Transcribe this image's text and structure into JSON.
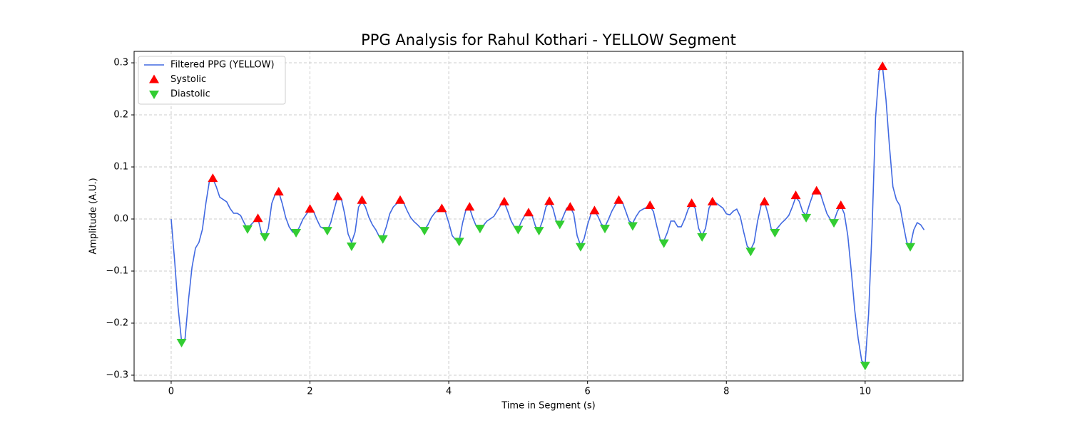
{
  "chart_data": {
    "type": "line",
    "title": "PPG Analysis for Rahul Kothari - YELLOW Segment",
    "xlabel": "Time in Segment (s)",
    "ylabel": "Amplitude (A.U.)",
    "xlim": [
      -0.534,
      11.41
    ],
    "ylim": [
      -0.311,
      0.322
    ],
    "xticks": [
      0,
      2,
      4,
      6,
      8,
      10
    ],
    "yticks": [
      {
        "value": -0.3,
        "label": "−0.3"
      },
      {
        "value": -0.2,
        "label": "−0.2"
      },
      {
        "value": -0.1,
        "label": "−0.1"
      },
      {
        "value": 0,
        "label": "0.0"
      },
      {
        "value": 0.1,
        "label": "0.1"
      },
      {
        "value": 0.2,
        "label": "0.2"
      },
      {
        "value": 0.3,
        "label": "0.3"
      }
    ],
    "grid": true,
    "legend": "upper-left",
    "series": [
      {
        "name": "Filtered PPG (YELLOW)",
        "kind": "line",
        "color": "#4169e1",
        "x": [
          0,
          0.05,
          0.1,
          0.15,
          0.2,
          0.25,
          0.3,
          0.35,
          0.4,
          0.45,
          0.5,
          0.55,
          0.6,
          0.65,
          0.7,
          0.8,
          0.85,
          0.9,
          0.95,
          1.0,
          1.05,
          1.1,
          1.15,
          1.2,
          1.25,
          1.3,
          1.35,
          1.4,
          1.45,
          1.5,
          1.55,
          1.6,
          1.65,
          1.7,
          1.75,
          1.8,
          1.85,
          1.9,
          2.0,
          2.05,
          2.1,
          2.15,
          2.25,
          2.3,
          2.35,
          2.4,
          2.45,
          2.5,
          2.55,
          2.6,
          2.65,
          2.7,
          2.75,
          2.8,
          2.85,
          2.9,
          2.95,
          3.0,
          3.05,
          3.1,
          3.15,
          3.2,
          3.3,
          3.35,
          3.4,
          3.45,
          3.5,
          3.55,
          3.6,
          3.65,
          3.7,
          3.75,
          3.8,
          3.85,
          3.9,
          3.95,
          4.0,
          4.05,
          4.1,
          4.15,
          4.2,
          4.25,
          4.3,
          4.35,
          4.4,
          4.45,
          4.5,
          4.55,
          4.65,
          4.7,
          4.75,
          4.8,
          4.85,
          4.9,
          4.95,
          5.0,
          5.05,
          5.1,
          5.15,
          5.2,
          5.25,
          5.3,
          5.35,
          5.4,
          5.45,
          5.5,
          5.55,
          5.6,
          5.65,
          5.7,
          5.75,
          5.8,
          5.85,
          5.9,
          5.95,
          6.0,
          6.05,
          6.1,
          6.15,
          6.2,
          6.25,
          6.3,
          6.35,
          6.4,
          6.45,
          6.5,
          6.55,
          6.6,
          6.65,
          6.7,
          6.75,
          6.8,
          6.9,
          6.95,
          7.0,
          7.05,
          7.1,
          7.15,
          7.2,
          7.25,
          7.3,
          7.35,
          7.4,
          7.45,
          7.5,
          7.55,
          7.6,
          7.65,
          7.7,
          7.75,
          7.8,
          7.85,
          7.95,
          8.0,
          8.05,
          8.1,
          8.15,
          8.2,
          8.25,
          8.3,
          8.35,
          8.4,
          8.45,
          8.5,
          8.55,
          8.6,
          8.65,
          8.7,
          8.75,
          8.8,
          8.85,
          8.9,
          8.95,
          9.0,
          9.05,
          9.1,
          9.15,
          9.2,
          9.25,
          9.3,
          9.35,
          9.4,
          9.45,
          9.5,
          9.55,
          9.6,
          9.65,
          9.7,
          9.75,
          9.8,
          9.85,
          9.9,
          9.95,
          10.0,
          10.05,
          10.1,
          10.15,
          10.2,
          10.25,
          10.3,
          10.35,
          10.4,
          10.45,
          10.5,
          10.55,
          10.6,
          10.65,
          10.7,
          10.75,
          10.8,
          10.85
        ],
        "values": [
          0,
          -0.08,
          -0.17,
          -0.235,
          -0.23,
          -0.155,
          -0.093,
          -0.056,
          -0.045,
          -0.02,
          0.03,
          0.072,
          0.078,
          0.062,
          0.042,
          0.033,
          0.02,
          0.011,
          0.011,
          0.007,
          -0.007,
          -0.019,
          -0.011,
          -0.004,
          0.001,
          -0.026,
          -0.034,
          -0.018,
          0.03,
          0.048,
          0.052,
          0.03,
          0.003,
          -0.015,
          -0.025,
          -0.027,
          -0.015,
          0,
          0.019,
          0.015,
          -0.001,
          -0.015,
          -0.022,
          -0.007,
          0.019,
          0.043,
          0.04,
          0.01,
          -0.029,
          -0.045,
          -0.025,
          0.023,
          0.034,
          0.023,
          0.003,
          -0.011,
          -0.021,
          -0.034,
          -0.034,
          -0.015,
          0.01,
          0.023,
          0.036,
          0.031,
          0.016,
          0.003,
          -0.005,
          -0.011,
          -0.018,
          -0.021,
          -0.011,
          0.003,
          0.012,
          0.018,
          0.021,
          0.014,
          -0.007,
          -0.032,
          -0.04,
          -0.042,
          -0.007,
          0.019,
          0.021,
          0.001,
          -0.015,
          -0.018,
          -0.012,
          -0.004,
          0.005,
          0.016,
          0.027,
          0.032,
          0.015,
          -0.004,
          -0.016,
          -0.019,
          -0.004,
          0.008,
          0.011,
          0.007,
          -0.014,
          -0.022,
          -0.004,
          0.023,
          0.033,
          0.021,
          -0.004,
          -0.011,
          0.005,
          0.021,
          0.023,
          0.01,
          -0.032,
          -0.051,
          -0.038,
          -0.011,
          0.01,
          0.015,
          0.005,
          -0.01,
          -0.015,
          -0.001,
          0.015,
          0.027,
          0.036,
          0.033,
          0.015,
          -0.004,
          -0.008,
          0.005,
          0.015,
          0.019,
          0.025,
          0.014,
          -0.015,
          -0.041,
          -0.042,
          -0.026,
          -0.004,
          -0.004,
          -0.015,
          -0.015,
          0,
          0.019,
          0.029,
          0.021,
          -0.018,
          -0.032,
          -0.018,
          0.021,
          0.033,
          0.031,
          0.021,
          0.01,
          0.008,
          0.015,
          0.019,
          0.005,
          -0.025,
          -0.052,
          -0.059,
          -0.045,
          -0.004,
          0.026,
          0.033,
          0.01,
          -0.021,
          -0.023,
          -0.015,
          -0.007,
          -0.001,
          0.007,
          0.023,
          0.042,
          0.034,
          0.014,
          0.007,
          0.029,
          0.048,
          0.053,
          0.051,
          0.03,
          0.01,
          -0.001,
          -0.004,
          0.015,
          0.026,
          0.01,
          -0.032,
          -0.1,
          -0.175,
          -0.23,
          -0.272,
          -0.278,
          -0.182,
          -0.018,
          0.195,
          0.284,
          0.293,
          0.23,
          0.14,
          0.062,
          0.037,
          0.026,
          -0.011,
          -0.045,
          -0.052,
          -0.021,
          -0.007,
          -0.011,
          -0.021
        ]
      },
      {
        "name": "Systolic",
        "kind": "up",
        "color": "#ff0000",
        "x": [
          0.6,
          1.25,
          1.55,
          2.0,
          2.4,
          2.75,
          3.3,
          3.9,
          4.3,
          4.8,
          5.15,
          5.45,
          5.75,
          6.1,
          6.45,
          6.9,
          7.5,
          7.8,
          8.55,
          9.0,
          9.3,
          9.65,
          10.25
        ],
        "values": [
          0.078,
          0.001,
          0.052,
          0.019,
          0.043,
          0.036,
          0.036,
          0.02,
          0.023,
          0.033,
          0.012,
          0.034,
          0.023,
          0.016,
          0.036,
          0.026,
          0.03,
          0.033,
          0.033,
          0.045,
          0.054,
          0.026,
          0.293
        ]
      },
      {
        "name": "Diastolic",
        "kind": "down",
        "color": "#32cd32",
        "x": [
          0.15,
          1.1,
          1.35,
          1.8,
          2.25,
          2.6,
          3.05,
          3.65,
          4.15,
          4.45,
          5.0,
          5.3,
          5.6,
          5.9,
          6.25,
          6.65,
          7.1,
          7.65,
          8.35,
          8.7,
          9.15,
          9.55,
          10.0,
          10.65
        ],
        "values": [
          -0.237,
          -0.019,
          -0.034,
          -0.026,
          -0.022,
          -0.052,
          -0.038,
          -0.022,
          -0.043,
          -0.018,
          -0.02,
          -0.022,
          -0.01,
          -0.053,
          -0.018,
          -0.013,
          -0.046,
          -0.034,
          -0.062,
          -0.026,
          0.003,
          -0.007,
          -0.281,
          -0.053
        ]
      }
    ]
  }
}
